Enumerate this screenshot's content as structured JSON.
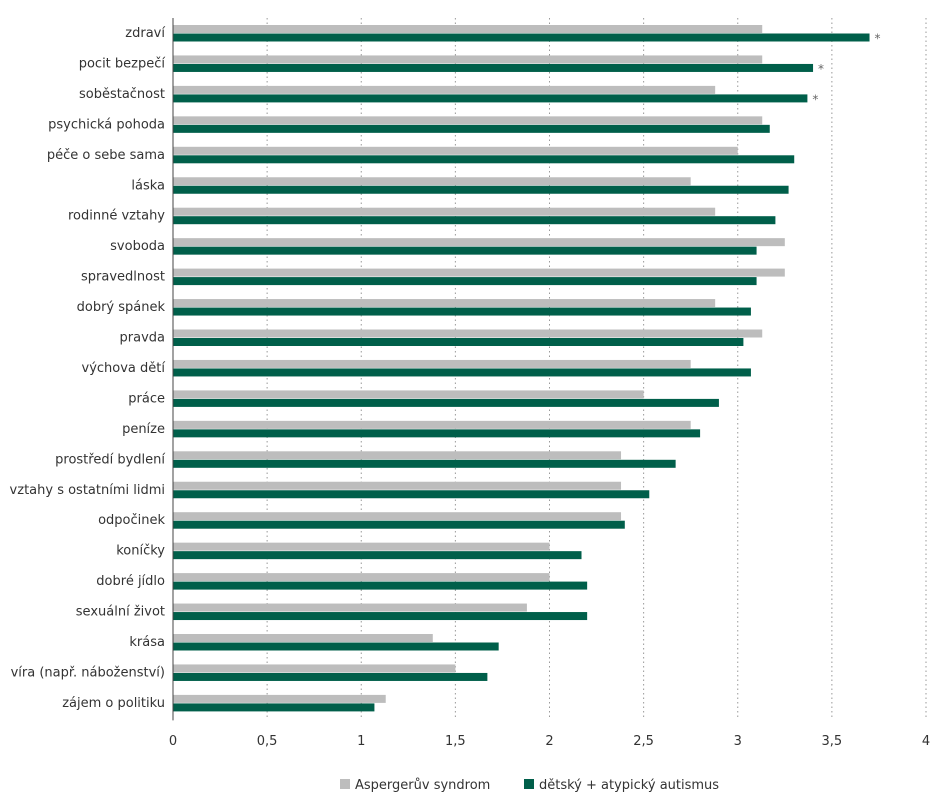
{
  "chart_data": {
    "type": "bar",
    "orientation": "horizontal",
    "categories": [
      "zdraví",
      "pocit bezpečí",
      "soběstačnost",
      "psychická pohoda",
      "péče o sebe sama",
      "láska",
      "rodinné vztahy",
      "svoboda",
      "spravedlnost",
      "dobrý spánek",
      "pravda",
      "výchova dětí",
      "práce",
      "peníze",
      "prostředí bydlení",
      "vztahy s ostatními lidmi",
      "odpočinek",
      "koníčky",
      "dobré jídlo",
      "sexuální život",
      "krása",
      "víra (např. náboženství)",
      "zájem o politiku"
    ],
    "series": [
      {
        "name": "Aspergerův syndrom",
        "color": "#bdbdbd",
        "values": [
          3.13,
          3.13,
          2.88,
          3.13,
          3.0,
          2.75,
          2.88,
          3.25,
          3.25,
          2.88,
          3.13,
          2.75,
          2.5,
          2.75,
          2.38,
          2.38,
          2.38,
          2.0,
          2.0,
          1.88,
          1.38,
          1.5,
          1.13
        ]
      },
      {
        "name": "dětský + atypický autismus",
        "color": "#005f4a",
        "values": [
          3.7,
          3.4,
          3.37,
          3.17,
          3.3,
          3.27,
          3.2,
          3.1,
          3.1,
          3.07,
          3.03,
          3.07,
          2.9,
          2.8,
          2.67,
          2.53,
          2.4,
          2.17,
          2.2,
          2.2,
          1.73,
          1.67,
          1.07
        ]
      }
    ],
    "significance": [
      "*",
      "*",
      "*",
      "",
      "",
      "",
      "",
      "",
      "",
      "",
      "",
      "",
      "",
      "",
      "",
      "",
      "",
      "",
      "",
      "",
      "",
      "",
      ""
    ],
    "xlim": [
      0,
      4
    ],
    "x_ticks": [
      0,
      0.5,
      1,
      1.5,
      2,
      2.5,
      3,
      3.5,
      4
    ],
    "x_tick_labels": [
      "0",
      "0,5",
      "1",
      "1,5",
      "2",
      "2,5",
      "3",
      "3,5",
      "4"
    ],
    "grid": "vertical-dotted",
    "legend_position": "bottom-center",
    "title": "",
    "xlabel": "",
    "ylabel": ""
  },
  "legend": {
    "items": [
      {
        "label": "Aspergerův syndrom",
        "color": "#bdbdbd"
      },
      {
        "label": "dětský + atypický autismus",
        "color": "#005f4a"
      }
    ]
  },
  "colors": {
    "axis": "#444444",
    "grid": "#999999"
  }
}
